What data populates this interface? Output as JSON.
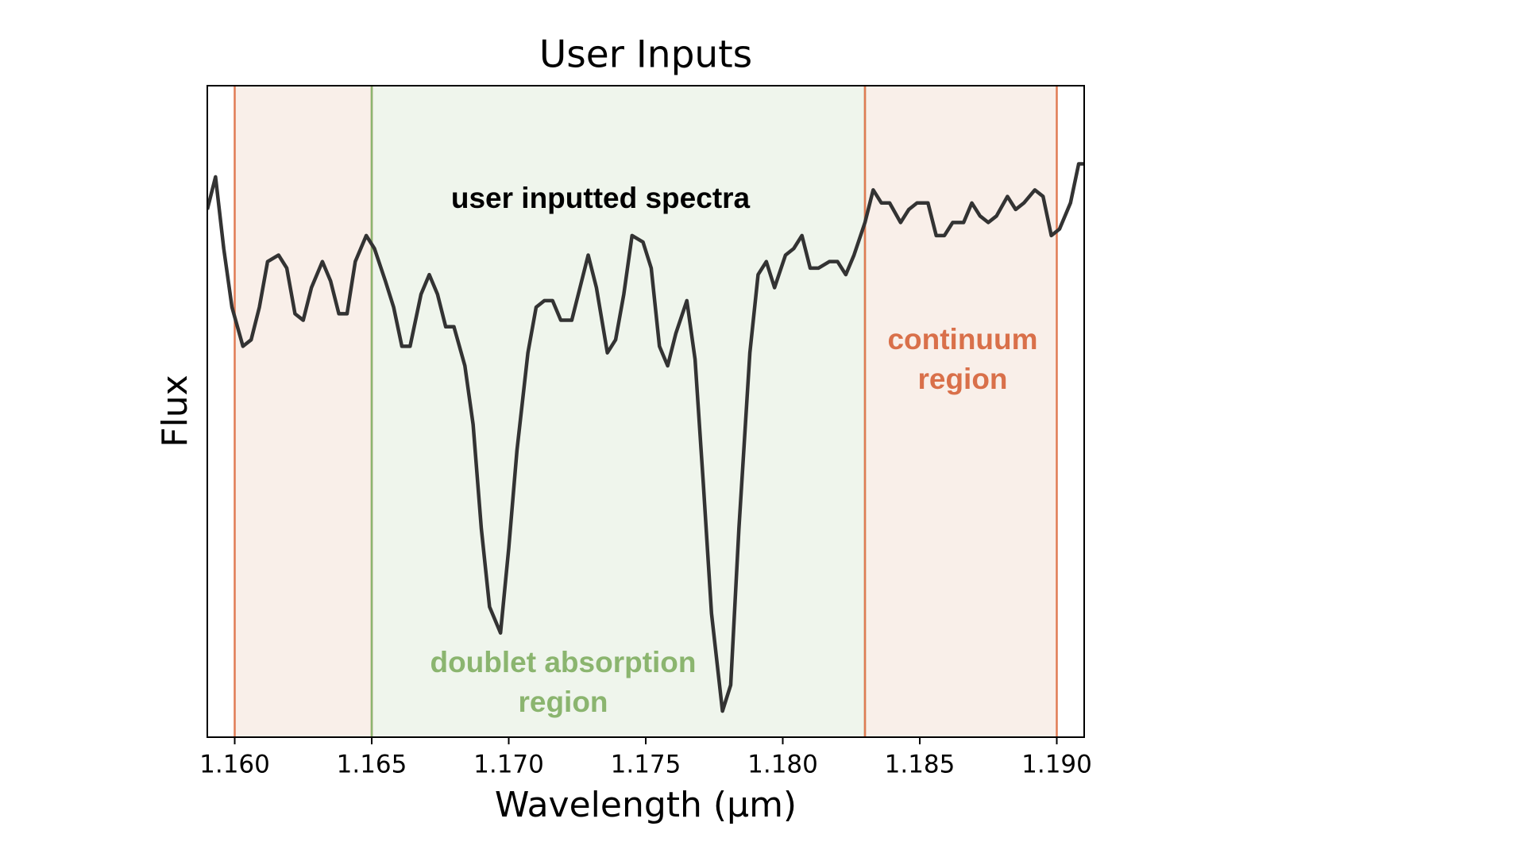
{
  "chart_data": {
    "type": "line",
    "title": "User Inputs",
    "x_label": "Wavelength (µm)",
    "y_label": "Flux",
    "xlim": [
      1.159,
      1.191
    ],
    "ylim": [
      0,
      1
    ],
    "xticks": [
      {
        "value": 1.16,
        "label": "1.160"
      },
      {
        "value": 1.165,
        "label": "1.165"
      },
      {
        "value": 1.17,
        "label": "1.170"
      },
      {
        "value": 1.175,
        "label": "1.175"
      },
      {
        "value": 1.18,
        "label": "1.180"
      },
      {
        "value": 1.185,
        "label": "1.185"
      },
      {
        "value": 1.19,
        "label": "1.190"
      }
    ],
    "regions": [
      {
        "x0": 1.16,
        "x1": 1.165,
        "color": "#e07b54",
        "fill": "#f9efe9"
      },
      {
        "x0": 1.165,
        "x1": 1.183,
        "color": "#8bb56f",
        "fill": "#eff5ec"
      },
      {
        "x0": 1.183,
        "x1": 1.19,
        "color": "#e07b54",
        "fill": "#f9efe9"
      }
    ],
    "annotations": [
      {
        "lines": [
          "user inputted spectra"
        ],
        "color": "#000000"
      },
      {
        "lines": [
          "doublet absorption",
          "region"
        ],
        "color": "#8bb56f"
      },
      {
        "lines": [
          "continuum",
          "region"
        ],
        "color": "#d9704a"
      }
    ],
    "x": [
      1.159,
      1.1593,
      1.1596,
      1.1599,
      1.1603,
      1.1606,
      1.1609,
      1.1612,
      1.1616,
      1.1619,
      1.1622,
      1.1625,
      1.1628,
      1.1632,
      1.1635,
      1.1638,
      1.1641,
      1.1644,
      1.1648,
      1.1651,
      1.1655,
      1.1658,
      1.1661,
      1.1664,
      1.1668,
      1.1671,
      1.1674,
      1.1677,
      1.168,
      1.1684,
      1.1687,
      1.169,
      1.1693,
      1.1697,
      1.17,
      1.1703,
      1.1707,
      1.171,
      1.1713,
      1.1716,
      1.1719,
      1.1723,
      1.1726,
      1.1729,
      1.1732,
      1.1736,
      1.1739,
      1.1742,
      1.1745,
      1.1749,
      1.1752,
      1.1755,
      1.1758,
      1.1761,
      1.1765,
      1.1768,
      1.1771,
      1.1774,
      1.1778,
      1.1781,
      1.1784,
      1.1788,
      1.1791,
      1.1794,
      1.1797,
      1.1801,
      1.1804,
      1.1807,
      1.181,
      1.1813,
      1.1817,
      1.182,
      1.1823,
      1.1826,
      1.183,
      1.1833,
      1.1836,
      1.1839,
      1.1843,
      1.1846,
      1.1849,
      1.1853,
      1.1856,
      1.1859,
      1.1862,
      1.1866,
      1.1869,
      1.1872,
      1.1875,
      1.1878,
      1.1882,
      1.1885,
      1.1888,
      1.1892,
      1.1895,
      1.1898,
      1.1901,
      1.1905,
      1.1908,
      1.191
    ],
    "series": [
      {
        "color": "#333333",
        "values": [
          0.81,
          0.86,
          0.75,
          0.66,
          0.6,
          0.61,
          0.66,
          0.73,
          0.74,
          0.72,
          0.65,
          0.64,
          0.69,
          0.73,
          0.7,
          0.65,
          0.65,
          0.73,
          0.77,
          0.75,
          0.7,
          0.66,
          0.6,
          0.6,
          0.68,
          0.71,
          0.68,
          0.63,
          0.63,
          0.57,
          0.48,
          0.32,
          0.2,
          0.16,
          0.29,
          0.44,
          0.59,
          0.66,
          0.67,
          0.67,
          0.64,
          0.64,
          0.69,
          0.74,
          0.69,
          0.59,
          0.61,
          0.68,
          0.77,
          0.76,
          0.72,
          0.6,
          0.57,
          0.62,
          0.67,
          0.58,
          0.39,
          0.19,
          0.04,
          0.08,
          0.32,
          0.59,
          0.71,
          0.73,
          0.69,
          0.74,
          0.75,
          0.77,
          0.72,
          0.72,
          0.73,
          0.73,
          0.71,
          0.74,
          0.79,
          0.84,
          0.82,
          0.82,
          0.79,
          0.81,
          0.82,
          0.82,
          0.77,
          0.77,
          0.79,
          0.79,
          0.82,
          0.8,
          0.79,
          0.8,
          0.83,
          0.81,
          0.82,
          0.84,
          0.83,
          0.77,
          0.78,
          0.82,
          0.88,
          0.88
        ]
      }
    ]
  }
}
